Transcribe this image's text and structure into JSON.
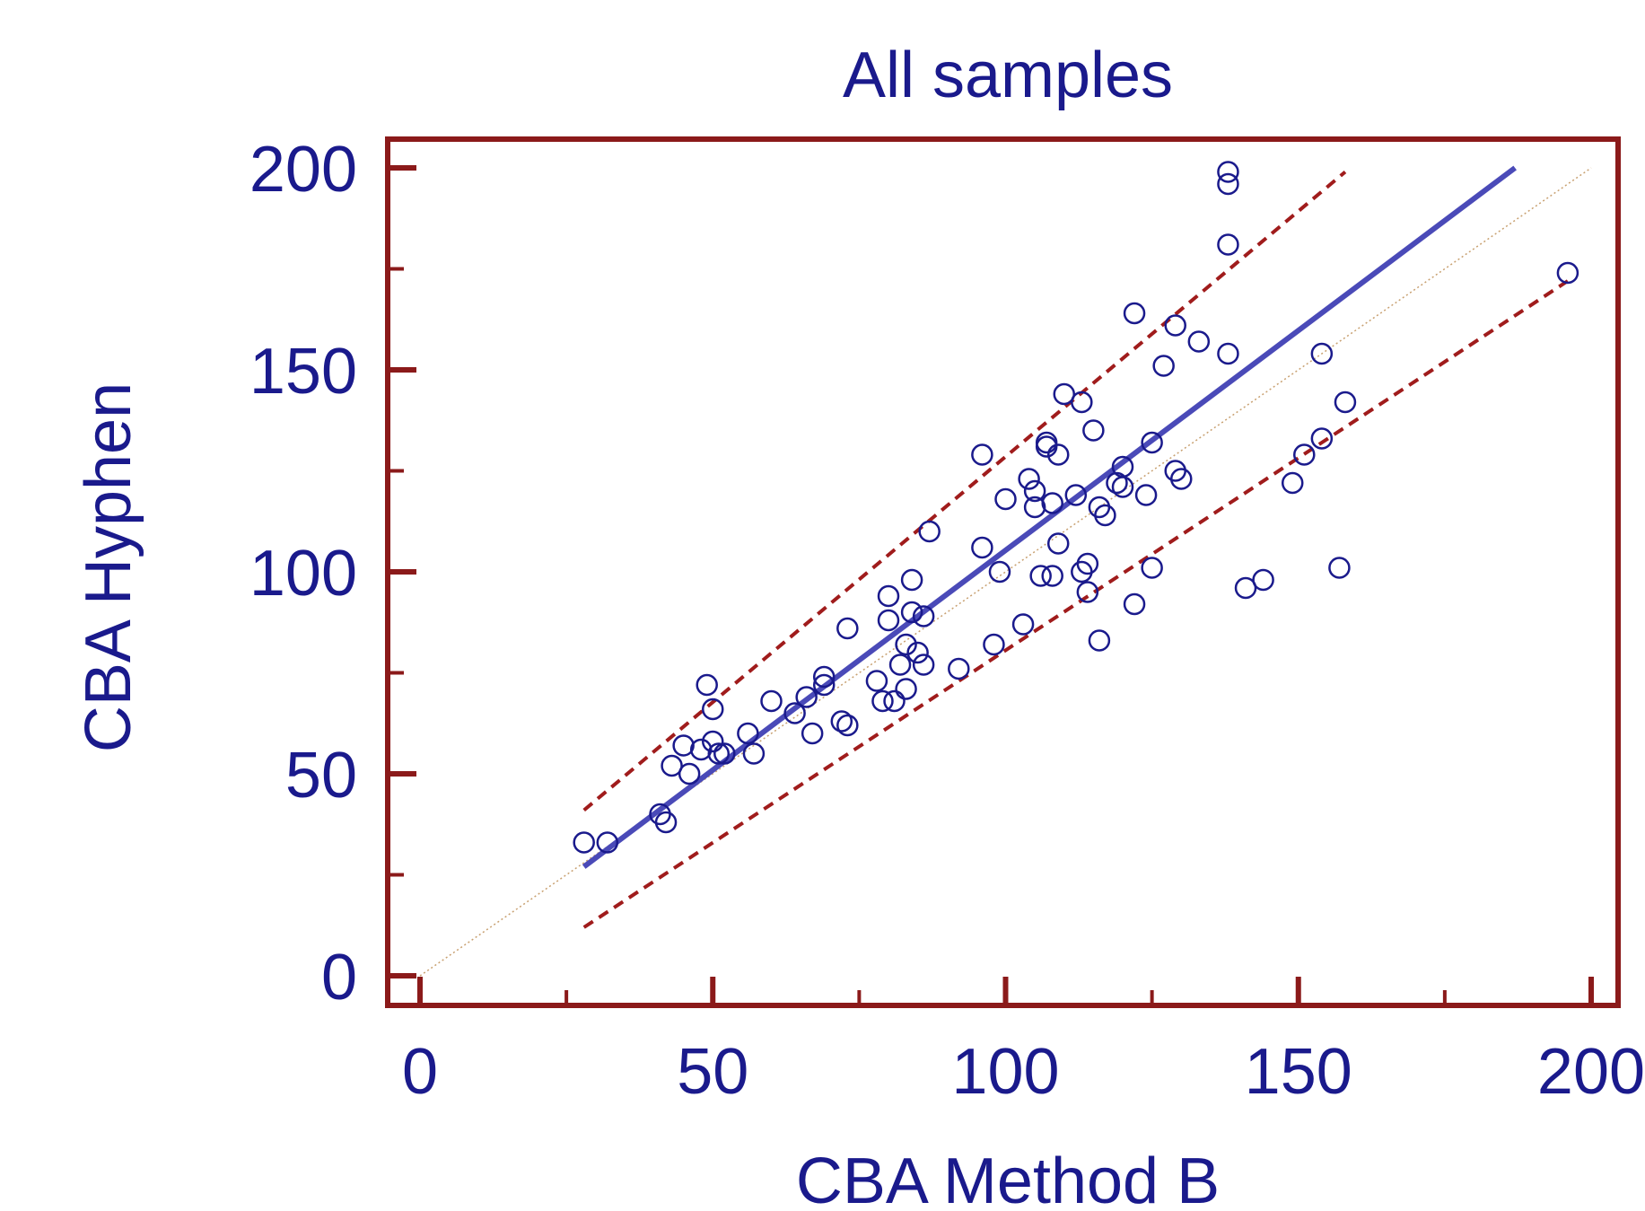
{
  "chart_data": {
    "type": "scatter",
    "title": "All samples",
    "xlabel": "CBA Method B",
    "ylabel": "CBA Hyphen",
    "xlim": [
      0,
      200
    ],
    "ylim": [
      0,
      200
    ],
    "xticks": [
      "0",
      "50",
      "100",
      "150",
      "200"
    ],
    "yticks": [
      "0",
      "50",
      "100",
      "150",
      "200"
    ],
    "grid": false,
    "legend": "none",
    "colors": {
      "frame": "#8b1a1a",
      "points": "#1a1a8c",
      "regression": "#4a4ab8",
      "limits": "#a01c1c",
      "identity": "#c8a070",
      "text": "#1a1a8c"
    },
    "regression_line": {
      "x": [
        28,
        187
      ],
      "y": [
        27,
        200
      ]
    },
    "upper_limit_line": {
      "x": [
        28,
        158
      ],
      "y": [
        41,
        199
      ]
    },
    "lower_limit_line": {
      "x": [
        28,
        196
      ],
      "y": [
        12,
        172
      ]
    },
    "identity_line": {
      "x": [
        0,
        200
      ],
      "y": [
        0,
        200
      ]
    },
    "points": [
      [
        28,
        33
      ],
      [
        32,
        33
      ],
      [
        41,
        40
      ],
      [
        42,
        38
      ],
      [
        43,
        52
      ],
      [
        45,
        57
      ],
      [
        46,
        50
      ],
      [
        48,
        56
      ],
      [
        49,
        72
      ],
      [
        50,
        66
      ],
      [
        50,
        58
      ],
      [
        51,
        55
      ],
      [
        52,
        55
      ],
      [
        56,
        60
      ],
      [
        57,
        55
      ],
      [
        60,
        68
      ],
      [
        64,
        65
      ],
      [
        66,
        69
      ],
      [
        67,
        60
      ],
      [
        69,
        74
      ],
      [
        69,
        72
      ],
      [
        72,
        63
      ],
      [
        73,
        62
      ],
      [
        73,
        86
      ],
      [
        78,
        73
      ],
      [
        79,
        68
      ],
      [
        80,
        94
      ],
      [
        80,
        88
      ],
      [
        81,
        68
      ],
      [
        82,
        77
      ],
      [
        83,
        71
      ],
      [
        83,
        82
      ],
      [
        84,
        90
      ],
      [
        84,
        98
      ],
      [
        85,
        80
      ],
      [
        86,
        77
      ],
      [
        86,
        89
      ],
      [
        87,
        110
      ],
      [
        92,
        76
      ],
      [
        96,
        106
      ],
      [
        96,
        129
      ],
      [
        98,
        82
      ],
      [
        99,
        100
      ],
      [
        100,
        118
      ],
      [
        103,
        87
      ],
      [
        104,
        123
      ],
      [
        105,
        116
      ],
      [
        105,
        120
      ],
      [
        106,
        99
      ],
      [
        107,
        132
      ],
      [
        107,
        131
      ],
      [
        108,
        117
      ],
      [
        108,
        99
      ],
      [
        109,
        107
      ],
      [
        109,
        129
      ],
      [
        110,
        144
      ],
      [
        112,
        119
      ],
      [
        113,
        142
      ],
      [
        113,
        100
      ],
      [
        114,
        95
      ],
      [
        114,
        102
      ],
      [
        115,
        135
      ],
      [
        116,
        116
      ],
      [
        116,
        83
      ],
      [
        117,
        114
      ],
      [
        119,
        122
      ],
      [
        120,
        126
      ],
      [
        120,
        121
      ],
      [
        122,
        164
      ],
      [
        122,
        92
      ],
      [
        124,
        119
      ],
      [
        125,
        132
      ],
      [
        125,
        101
      ],
      [
        127,
        151
      ],
      [
        129,
        125
      ],
      [
        129,
        161
      ],
      [
        130,
        123
      ],
      [
        133,
        157
      ],
      [
        138,
        199
      ],
      [
        138,
        196
      ],
      [
        138,
        181
      ],
      [
        138,
        154
      ],
      [
        141,
        96
      ],
      [
        144,
        98
      ],
      [
        149,
        122
      ],
      [
        151,
        129
      ],
      [
        154,
        154
      ],
      [
        154,
        133
      ],
      [
        157,
        101
      ],
      [
        158,
        142
      ],
      [
        196,
        174
      ]
    ]
  }
}
